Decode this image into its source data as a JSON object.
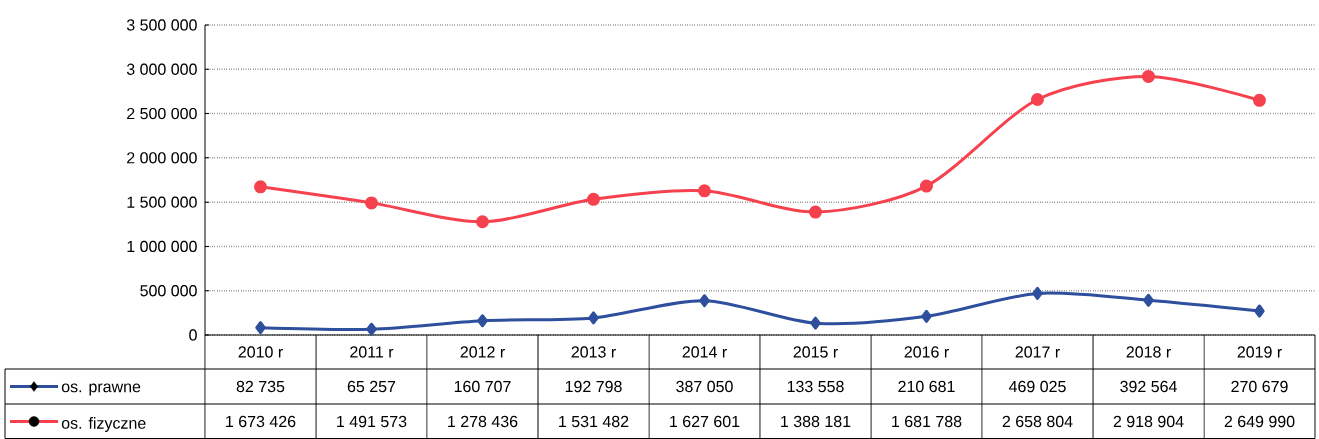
{
  "chart_data": {
    "type": "line",
    "categories": [
      "2010 r",
      "2011 r",
      "2012 r",
      "2013 r",
      "2014 r",
      "2015 r",
      "2016 r",
      "2017 r",
      "2018 r",
      "2019 r"
    ],
    "series": [
      {
        "name": "os. prawne",
        "color": "#2e4f9e",
        "marker": "diamond",
        "values": [
          82735,
          65257,
          160707,
          192798,
          387050,
          133558,
          210681,
          469025,
          392564,
          270679
        ],
        "value_labels": [
          "82 735",
          "65 257",
          "160 707",
          "192 798",
          "387 050",
          "133 558",
          "210 681",
          "469 025",
          "392 564",
          "270 679"
        ]
      },
      {
        "name": "os. fizyczne",
        "color": "#f5424e",
        "marker": "circle",
        "values": [
          1673426,
          1491573,
          1278436,
          1531482,
          1627601,
          1388181,
          1681788,
          2658804,
          2918904,
          2649990
        ],
        "value_labels": [
          "1 673 426",
          "1 491 573",
          "1 278 436",
          "1 531 482",
          "1 627 601",
          "1 388 181",
          "1 681 788",
          "2 658 804",
          "2 918 904",
          "2 649 990"
        ]
      }
    ],
    "ylim": [
      0,
      3500000
    ],
    "yticks": [
      0,
      {
        "value": 500000,
        "label": "500 000"
      },
      {
        "value": 1000000,
        "label": "1 000 000"
      },
      {
        "value": 1500000,
        "label": "1 500 000"
      },
      {
        "value": 2000000,
        "label": "2 000 000"
      },
      {
        "value": 2500000,
        "label": "2 500 000"
      },
      {
        "value": 3000000,
        "label": "3 000 000"
      },
      {
        "value": 3500000,
        "label": "3 500 000"
      }
    ],
    "grid": true,
    "legend": "bottom"
  }
}
